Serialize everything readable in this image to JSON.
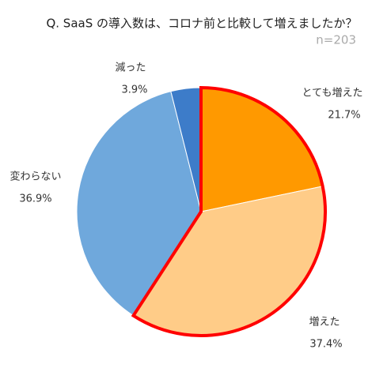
{
  "chart_data": {
    "type": "pie",
    "title": "Q. SaaS の導入数は、コロナ前と比較して増えましたか？",
    "subtitle": "n=203",
    "categories": [
      "とても増えた",
      "増えた",
      "変わらない",
      "減った"
    ],
    "values": [
      21.7,
      37.4,
      36.9,
      3.9
    ],
    "value_labels": [
      "21.7%",
      "37.4%",
      "36.9%",
      "3.9%"
    ],
    "colors": [
      "#ff9900",
      "#ffcc88",
      "#6fa8dc",
      "#3d7cc9"
    ],
    "highlight": [
      0,
      1
    ],
    "highlight_color": "#ff0000"
  }
}
